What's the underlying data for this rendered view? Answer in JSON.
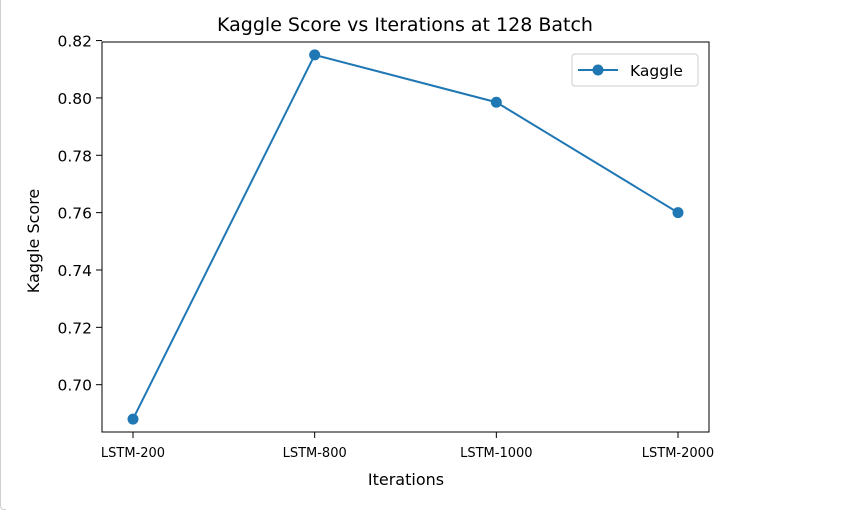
{
  "chart_data": {
    "type": "line",
    "title": "Kaggle Score vs Iterations at 128 Batch",
    "xlabel": "Iterations",
    "ylabel": "Kaggle Score",
    "categories": [
      "LSTM-200",
      "LSTM-800",
      "LSTM-1000",
      "LSTM-2000"
    ],
    "series": [
      {
        "name": "Kaggle",
        "values": [
          0.688,
          0.815,
          0.7985,
          0.76
        ],
        "color": "#1f77b4"
      }
    ],
    "ylim": [
      0.6835,
      0.8195
    ],
    "yticks": [
      0.7,
      0.72,
      0.74,
      0.76,
      0.78,
      0.8,
      0.82
    ],
    "ytick_labels": [
      "0.70",
      "0.72",
      "0.74",
      "0.76",
      "0.78",
      "0.80",
      "0.82"
    ],
    "legend": "top-right",
    "grid": false
  }
}
